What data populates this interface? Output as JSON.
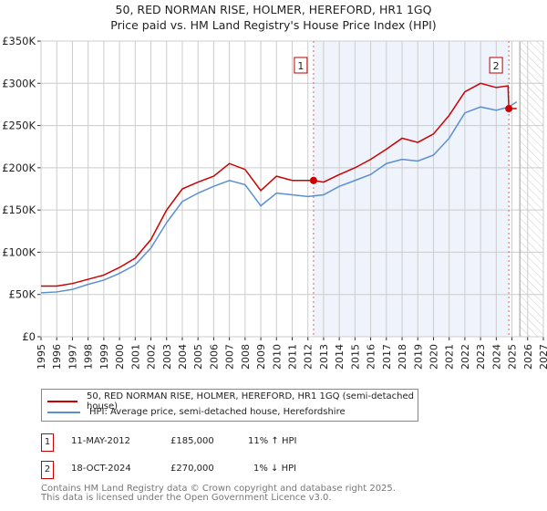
{
  "title_line1": "50, RED NORMAN RISE, HOLMER, HEREFORD, HR1 1GQ",
  "title_line2": "Price paid vs. HM Land Registry's House Price Index (HPI)",
  "chart_data": {
    "type": "line",
    "xlim": [
      1995,
      2027
    ],
    "ylim": [
      0,
      350000
    ],
    "xticks": [
      "1995",
      "1996",
      "1997",
      "1998",
      "1999",
      "2000",
      "2001",
      "2002",
      "2003",
      "2004",
      "2005",
      "2006",
      "2007",
      "2008",
      "2009",
      "2010",
      "2011",
      "2012",
      "2013",
      "2014",
      "2015",
      "2016",
      "2017",
      "2018",
      "2019",
      "2020",
      "2021",
      "2022",
      "2023",
      "2024",
      "2025",
      "2026",
      "2027"
    ],
    "yticks": [
      {
        "v": 0,
        "label": "£0"
      },
      {
        "v": 50000,
        "label": "£50K"
      },
      {
        "v": 100000,
        "label": "£100K"
      },
      {
        "v": 150000,
        "label": "£150K"
      },
      {
        "v": 200000,
        "label": "£200K"
      },
      {
        "v": 250000,
        "label": "£250K"
      },
      {
        "v": 300000,
        "label": "£300K"
      },
      {
        "v": 350000,
        "label": "£350K"
      }
    ],
    "series": [
      {
        "name": "50, RED NORMAN RISE, HOLMER, HEREFORD, HR1 1GQ (semi-detached house)",
        "color": "#cc0000",
        "x": [
          1995,
          1996,
          1997,
          1998,
          1999,
          2000,
          2001,
          2002,
          2003,
          2004,
          2005,
          2006,
          2007,
          2008,
          2009,
          2010,
          2011,
          2012,
          2012.36,
          2013,
          2014,
          2015,
          2016,
          2017,
          2018,
          2019,
          2020,
          2021,
          2022,
          2023,
          2024,
          2024.75,
          2024.8,
          2025.3
        ],
        "y": [
          60000,
          60000,
          63000,
          68000,
          73000,
          82000,
          93000,
          115000,
          150000,
          175000,
          183000,
          190000,
          205000,
          198000,
          173000,
          190000,
          185000,
          185000,
          185000,
          183000,
          192000,
          200000,
          210000,
          222000,
          235000,
          230000,
          240000,
          262000,
          290000,
          300000,
          295000,
          297000,
          270000,
          270000
        ]
      },
      {
        "name": "HPI: Average price, semi-detached house, Herefordshire",
        "color": "#5b8fd0",
        "x": [
          1995,
          1996,
          1997,
          1998,
          1999,
          2000,
          2001,
          2002,
          2003,
          2004,
          2005,
          2006,
          2007,
          2008,
          2009,
          2010,
          2011,
          2012,
          2013,
          2014,
          2015,
          2016,
          2017,
          2018,
          2019,
          2020,
          2021,
          2022,
          2023,
          2024,
          2024.8,
          2025.3
        ],
        "y": [
          52000,
          53000,
          56000,
          62000,
          67000,
          75000,
          85000,
          105000,
          135000,
          160000,
          170000,
          178000,
          185000,
          180000,
          155000,
          170000,
          168000,
          166000,
          168000,
          178000,
          185000,
          192000,
          205000,
          210000,
          208000,
          215000,
          235000,
          265000,
          272000,
          268000,
          272000,
          278000
        ]
      }
    ],
    "sales": [
      {
        "label": "1",
        "x": 2012.36,
        "y": 185000
      },
      {
        "label": "2",
        "x": 2024.8,
        "y": 270000
      }
    ],
    "forecast_start": 2025.5
  },
  "legend": [
    "50, RED NORMAN RISE, HOLMER, HEREFORD, HR1 1GQ (semi-detached house)",
    "HPI: Average price, semi-detached house, Herefordshire"
  ],
  "transactions": [
    {
      "num": "1",
      "date": "11-MAY-2012",
      "price": "£185,000",
      "hpi": "11% ↑ HPI"
    },
    {
      "num": "2",
      "date": "18-OCT-2024",
      "price": "£270,000",
      "hpi": "1% ↓ HPI"
    }
  ],
  "footer_line1": "Contains HM Land Registry data © Crown copyright and database right 2025.",
  "footer_line2": "This data is licensed under the Open Government Licence v3.0."
}
